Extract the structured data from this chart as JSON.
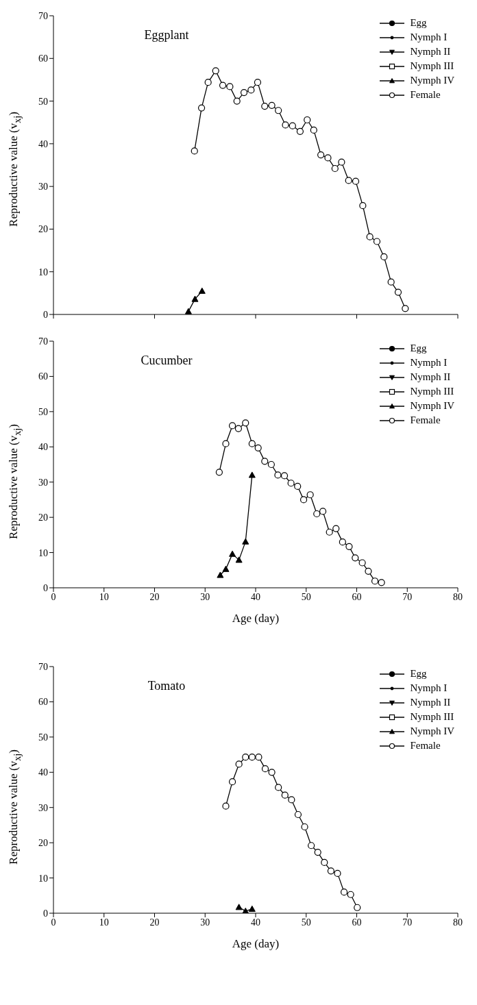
{
  "chart_data": [
    {
      "type": "line",
      "title": "Eggplant",
      "ylabel": "Reproductive value (v$_{xj}$)",
      "xlim": [
        0,
        80
      ],
      "xticks": [
        {
          "value": 0,
          "label": null
        },
        {
          "value": 20,
          "label": null
        },
        {
          "value": 40,
          "label": null
        },
        {
          "value": 60,
          "label": null
        },
        {
          "value": 80,
          "label": null
        }
      ],
      "ylim": [
        0,
        70
      ],
      "yticks": [
        0,
        10,
        20,
        30,
        40,
        50,
        60,
        70
      ],
      "tick_labels": "y",
      "grid": false,
      "legend": "top right",
      "line_style": "solid",
      "series": [
        {
          "name": "Egg",
          "color": "#000000",
          "marker": "circle"
        },
        {
          "name": "Nymph I",
          "color": "#000000",
          "marker": "circle"
        },
        {
          "name": "Nymph II",
          "color": "#000000",
          "marker": "triangle_down"
        },
        {
          "name": "Nymph III",
          "color": "#000000",
          "marker": "square"
        },
        {
          "name": "Nymph IV",
          "color": "#000000",
          "marker": "triangle",
          "x": [
            26.7,
            28.0,
            29.4
          ],
          "values": [
            0.7,
            3.6,
            5.5
          ]
        },
        {
          "name": "Female",
          "color": "#000000",
          "marker": "circle",
          "x": [
            27.9,
            29.3,
            30.6,
            32.1,
            33.5,
            34.9,
            36.3,
            37.7,
            39.1,
            40.4,
            41.8,
            43.2,
            44.5,
            45.9,
            47.3,
            48.8,
            50.2,
            51.5,
            52.9,
            54.3,
            55.7,
            57.0,
            58.4,
            59.8,
            61.2,
            62.6,
            64.0,
            65.4,
            66.8,
            68.2,
            69.6
          ],
          "values": [
            38.3,
            48.4,
            54.4,
            57.1,
            53.7,
            53.4,
            50.0,
            52.0,
            52.6,
            54.4,
            48.8,
            49.0,
            47.8,
            44.4,
            44.2,
            42.9,
            45.6,
            43.2,
            37.4,
            36.7,
            34.2,
            35.7,
            31.4,
            31.2,
            25.5,
            18.2,
            17.1,
            13.5,
            7.6,
            5.2,
            1.4
          ]
        }
      ]
    },
    {
      "type": "line",
      "title": "Cucumber",
      "xlabel": "Age (day)",
      "ylabel": "Reproductive value (v$_{xj}$)",
      "xlim": [
        0,
        80
      ],
      "xticks": [
        0,
        10,
        20,
        30,
        40,
        50,
        60,
        70,
        80
      ],
      "ylim": [
        0,
        70
      ],
      "yticks": [
        0,
        10,
        20,
        30,
        40,
        50,
        60,
        70
      ],
      "grid": false,
      "legend": "top right",
      "line_style": "solid",
      "series": [
        {
          "name": "Egg",
          "color": "#000000",
          "marker": "circle"
        },
        {
          "name": "Nymph I",
          "color": "#000000",
          "marker": "circle"
        },
        {
          "name": "Nymph II",
          "color": "#000000",
          "marker": "triangle_down"
        },
        {
          "name": "Nymph III",
          "color": "#000000",
          "marker": "square"
        },
        {
          "name": "Nymph IV",
          "color": "#000000",
          "marker": "triangle",
          "x": [
            33.0,
            34.1,
            35.4,
            36.7,
            38.0,
            39.3
          ],
          "values": [
            3.6,
            5.3,
            9.6,
            7.9,
            13.1,
            32.0
          ]
        },
        {
          "name": "Female",
          "color": "#000000",
          "marker": "circle",
          "x": [
            32.8,
            34.1,
            35.4,
            36.6,
            38.0,
            39.3,
            40.5,
            41.8,
            43.1,
            44.4,
            45.7,
            47.0,
            48.3,
            49.5,
            50.8,
            52.1,
            53.3,
            54.6,
            55.9,
            57.2,
            58.5,
            59.7,
            61.1,
            62.3,
            63.6,
            64.9
          ],
          "values": [
            32.8,
            40.9,
            46.0,
            45.2,
            46.8,
            40.9,
            39.7,
            35.9,
            35.0,
            32.0,
            31.8,
            29.7,
            28.8,
            25.0,
            26.4,
            21.0,
            21.7,
            15.8,
            16.8,
            13.0,
            11.7,
            8.5,
            7.1,
            4.7,
            1.9,
            1.5
          ]
        }
      ]
    },
    {
      "type": "line",
      "title": "Tomato",
      "xlabel": "Age (day)",
      "ylabel": "Reproductive value (v$_{xj}$)",
      "xlim": [
        0,
        80
      ],
      "xticks": [
        0,
        10,
        20,
        30,
        40,
        50,
        60,
        70,
        80
      ],
      "ylim": [
        0,
        70
      ],
      "yticks": [
        0,
        10,
        20,
        30,
        40,
        50,
        60,
        70
      ],
      "grid": false,
      "legend": "top right",
      "line_style": "solid",
      "series": [
        {
          "name": "Egg",
          "color": "#000000",
          "marker": "circle"
        },
        {
          "name": "Nymph I",
          "color": "#000000",
          "marker": "circle"
        },
        {
          "name": "Nymph II",
          "color": "#000000",
          "marker": "triangle_down"
        },
        {
          "name": "Nymph III",
          "color": "#000000",
          "marker": "square"
        },
        {
          "name": "Nymph IV",
          "color": "#000000",
          "marker": "triangle",
          "x": [
            36.7,
            38.0,
            39.3
          ],
          "values": [
            1.7,
            0.6,
            1.2
          ]
        },
        {
          "name": "Female",
          "color": "#000000",
          "marker": "circle",
          "x": [
            34.1,
            35.4,
            36.7,
            38.0,
            39.3,
            40.6,
            41.9,
            43.2,
            44.5,
            45.8,
            47.1,
            48.4,
            49.7,
            51.0,
            52.3,
            53.6,
            54.9,
            56.2,
            57.5,
            58.8,
            60.1
          ],
          "values": [
            30.4,
            37.3,
            42.3,
            44.3,
            44.3,
            44.3,
            41.0,
            40.0,
            35.7,
            33.5,
            32.2,
            28.0,
            24.5,
            19.2,
            17.3,
            14.4,
            12.0,
            11.3,
            6.0,
            5.3,
            1.6
          ]
        }
      ]
    }
  ]
}
